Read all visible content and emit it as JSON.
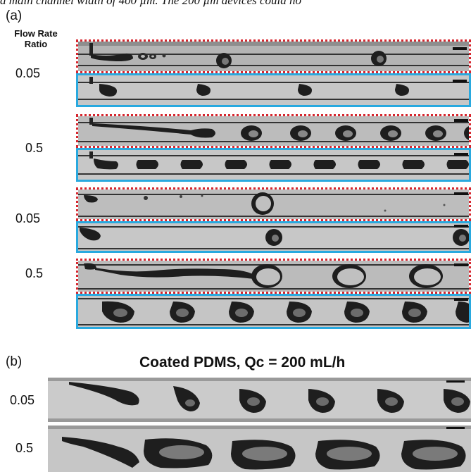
{
  "top_text": "a main channel width of 400 µm. The 200 µm devices could no",
  "panel_a": {
    "label": "(a)",
    "header": [
      "Flow Rate",
      "Ratio"
    ],
    "ratios": [
      "0.05",
      "0.5",
      "0.05",
      "0.5"
    ]
  },
  "panel_b": {
    "label": "(b)",
    "title": "Coated PDMS, Qc = 200 mL/h",
    "ratios": [
      "0.05",
      "0.5"
    ]
  },
  "colors": {
    "red_frame": "#d6262e",
    "blue_frame": "#29a9df"
  }
}
